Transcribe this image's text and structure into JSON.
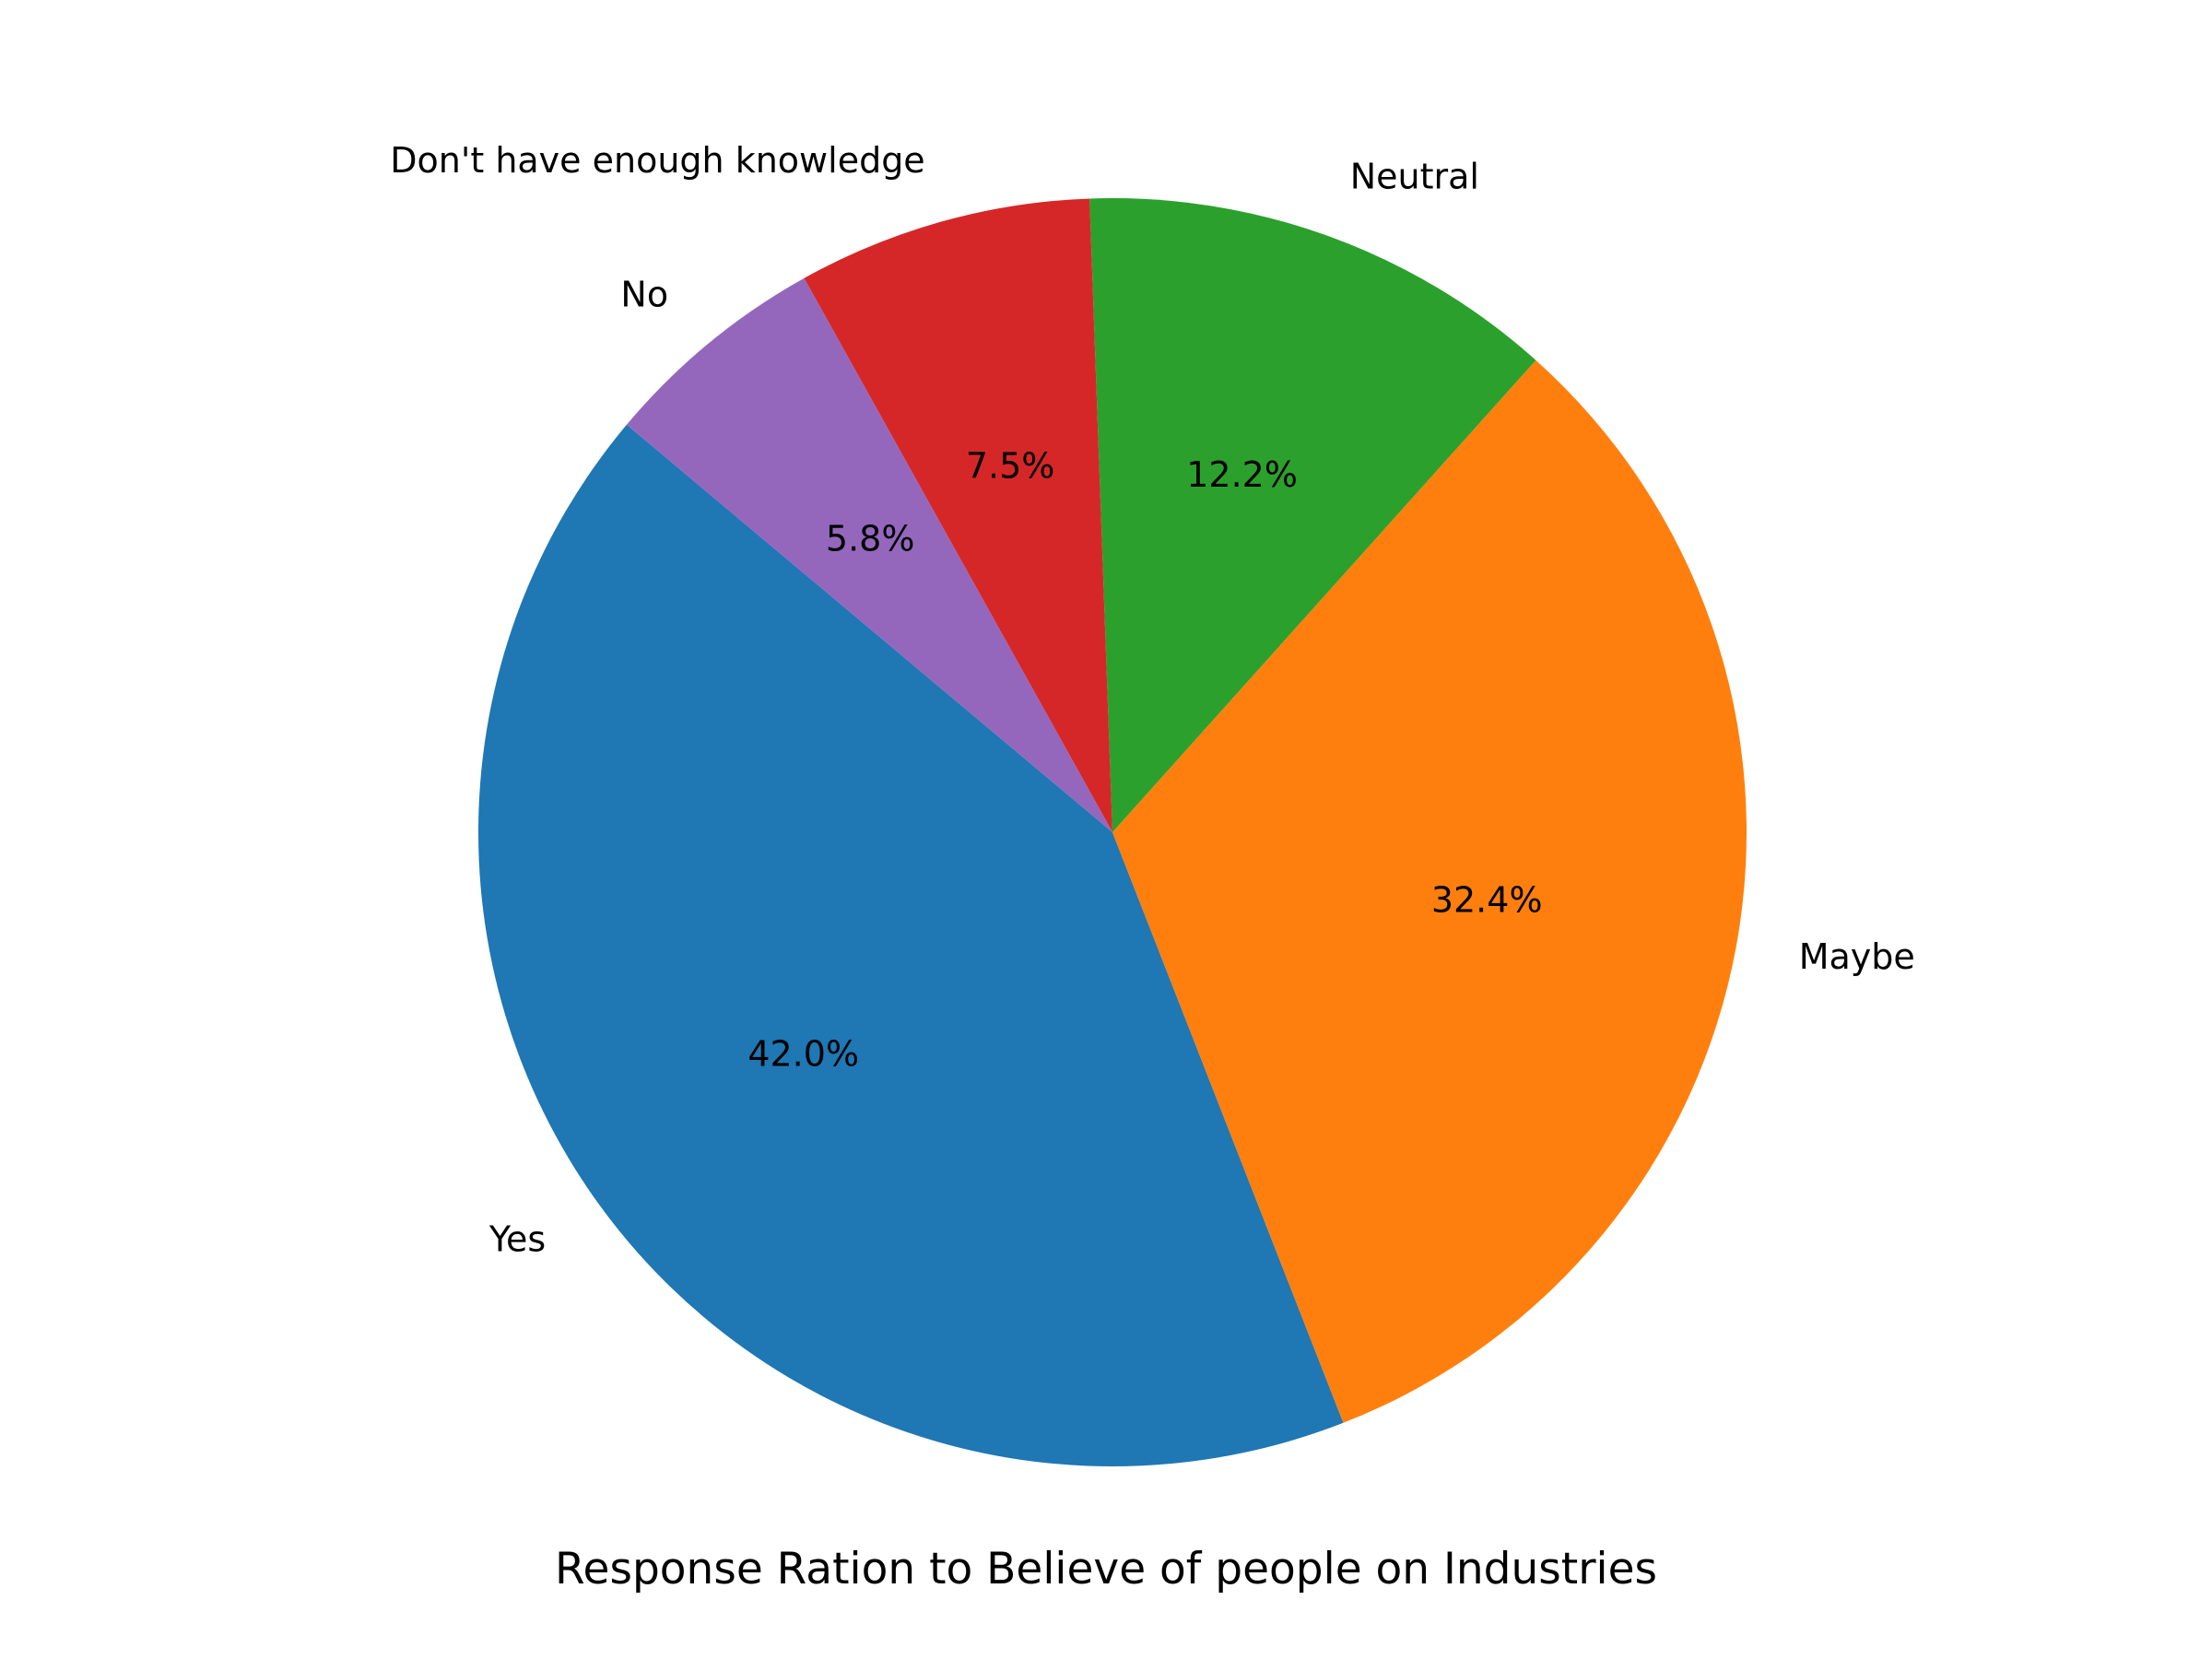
{
  "chart_data": {
    "type": "pie",
    "title": "Response Ration to Believe of people on Industries",
    "start_angle_deg": 140,
    "direction": "counterclockwise",
    "slices": [
      {
        "label": "Yes",
        "value": 42.0,
        "pct_label": "42.0%",
        "color": "#1f77b4"
      },
      {
        "label": "Maybe",
        "value": 32.4,
        "pct_label": "32.4%",
        "color": "#ff7f0e"
      },
      {
        "label": "Neutral",
        "value": 12.2,
        "pct_label": "12.2%",
        "color": "#2ca02c"
      },
      {
        "label": "Don't have enough knowledge",
        "value": 7.5,
        "pct_label": "7.5%",
        "color": "#d62728"
      },
      {
        "label": "No",
        "value": 5.8,
        "pct_label": "5.8%",
        "color": "#9467bd"
      }
    ]
  }
}
